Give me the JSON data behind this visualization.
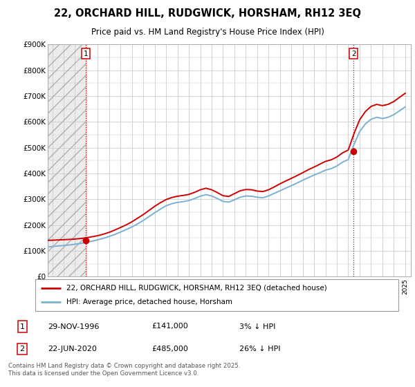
{
  "title": "22, ORCHARD HILL, RUDGWICK, HORSHAM, RH12 3EQ",
  "subtitle": "Price paid vs. HM Land Registry's House Price Index (HPI)",
  "legend_line1": "22, ORCHARD HILL, RUDGWICK, HORSHAM, RH12 3EQ (detached house)",
  "legend_line2": "HPI: Average price, detached house, Horsham",
  "annotation1_label": "1",
  "annotation1_date": "29-NOV-1996",
  "annotation1_price": "£141,000",
  "annotation1_hpi": "3% ↓ HPI",
  "annotation1_year": 1996.92,
  "annotation1_value": 141000,
  "annotation2_label": "2",
  "annotation2_date": "22-JUN-2020",
  "annotation2_price": "£485,000",
  "annotation2_hpi": "26% ↓ HPI",
  "annotation2_year": 2020.47,
  "annotation2_value": 485000,
  "ymax": 900000,
  "ymin": 0,
  "xmin": 1993.6,
  "xmax": 2025.5,
  "grid_color": "#cccccc",
  "red_line_color": "#cc0000",
  "blue_line_color": "#7ab0d4",
  "copyright_text": "Contains HM Land Registry data © Crown copyright and database right 2025.\nThis data is licensed under the Open Government Licence v3.0.",
  "hpi_years": [
    1993.6,
    1994.0,
    1994.5,
    1995.0,
    1995.5,
    1996.0,
    1996.5,
    1997.0,
    1997.5,
    1998.0,
    1998.5,
    1999.0,
    1999.5,
    2000.0,
    2000.5,
    2001.0,
    2001.5,
    2002.0,
    2002.5,
    2003.0,
    2003.5,
    2004.0,
    2004.5,
    2005.0,
    2005.5,
    2006.0,
    2006.5,
    2007.0,
    2007.5,
    2008.0,
    2008.5,
    2009.0,
    2009.5,
    2010.0,
    2010.5,
    2011.0,
    2011.5,
    2012.0,
    2012.5,
    2013.0,
    2013.5,
    2014.0,
    2014.5,
    2015.0,
    2015.5,
    2016.0,
    2016.5,
    2017.0,
    2017.5,
    2018.0,
    2018.5,
    2019.0,
    2019.5,
    2020.0,
    2020.5,
    2021.0,
    2021.5,
    2022.0,
    2022.5,
    2023.0,
    2023.5,
    2024.0,
    2024.5,
    2025.0
  ],
  "hpi_values": [
    115000,
    117000,
    119000,
    121000,
    123000,
    126000,
    129000,
    133000,
    138000,
    143000,
    149000,
    156000,
    164000,
    173000,
    183000,
    193000,
    205000,
    218000,
    233000,
    248000,
    262000,
    275000,
    283000,
    288000,
    291000,
    295000,
    303000,
    312000,
    318000,
    313000,
    303000,
    292000,
    289000,
    298000,
    308000,
    313000,
    312000,
    308000,
    306000,
    313000,
    323000,
    333000,
    343000,
    353000,
    363000,
    374000,
    384000,
    394000,
    403000,
    413000,
    419000,
    429000,
    444000,
    454000,
    512000,
    562000,
    592000,
    610000,
    618000,
    613000,
    618000,
    628000,
    643000,
    658000
  ],
  "price_years": [
    1996.92,
    2020.47
  ],
  "price_values": [
    141000,
    485000
  ],
  "hpi_scaled_years": [
    1993.6,
    1994.0,
    1994.5,
    1995.0,
    1995.5,
    1996.0,
    1996.5,
    1997.0,
    1997.5,
    1998.0,
    1998.5,
    1999.0,
    1999.5,
    2000.0,
    2000.5,
    2001.0,
    2001.5,
    2002.0,
    2002.5,
    2003.0,
    2003.5,
    2004.0,
    2004.5,
    2005.0,
    2005.5,
    2006.0,
    2006.5,
    2007.0,
    2007.5,
    2008.0,
    2008.5,
    2009.0,
    2009.5,
    2010.0,
    2010.5,
    2011.0,
    2011.5,
    2012.0,
    2012.5,
    2013.0,
    2013.5,
    2014.0,
    2014.5,
    2015.0,
    2015.5,
    2016.0,
    2016.5,
    2017.0,
    2017.5,
    2018.0,
    2018.5,
    2019.0,
    2019.5,
    2020.0,
    2020.5,
    2021.0,
    2021.5,
    2022.0,
    2022.5,
    2023.0,
    2023.5,
    2024.0,
    2024.5,
    2025.0
  ],
  "red_scaled_values": [
    141000,
    141500,
    142500,
    143500,
    144500,
    146000,
    148000,
    151000,
    155000,
    159000,
    165000,
    172000,
    181000,
    191000,
    201000,
    213000,
    227000,
    241000,
    257000,
    273000,
    287000,
    299000,
    307000,
    312000,
    315000,
    319000,
    327000,
    337000,
    343000,
    337000,
    326000,
    314000,
    311000,
    322000,
    333000,
    338000,
    337000,
    332000,
    330000,
    337000,
    348000,
    360000,
    371000,
    381000,
    392000,
    403000,
    415000,
    425000,
    436000,
    447000,
    453000,
    464000,
    480000,
    491000,
    554000,
    608000,
    640000,
    660000,
    668000,
    663000,
    668000,
    679000,
    695000,
    711000
  ]
}
